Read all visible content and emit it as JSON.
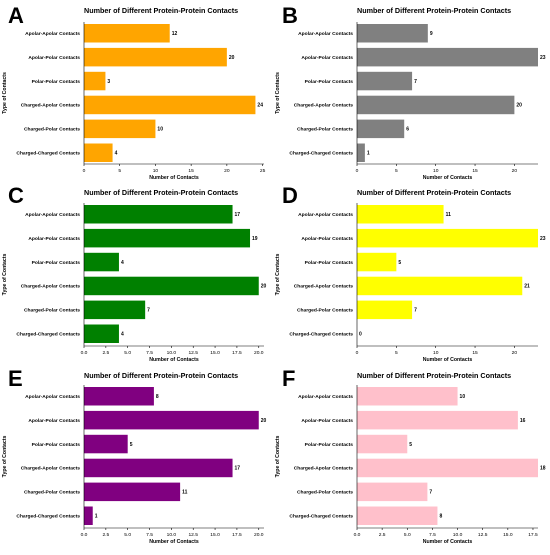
{
  "chart_data": [
    {
      "panel": "A",
      "type": "bar",
      "orientation": "horizontal",
      "title": "Number of Different Protein-Protein Contacts",
      "xlabel": "Number of Contacts",
      "ylabel": "Type of Contacts",
      "categories": [
        "Apolar-Apolar Contacts",
        "Apolar-Polar Contacts",
        "Polar-Polar Contacts",
        "Charged-Apolar Contacts",
        "Charged-Polar Contacts",
        "Charged-Charged Contacts"
      ],
      "values": [
        12,
        20,
        3,
        24,
        10,
        4
      ],
      "xlim": [
        0,
        25.2
      ],
      "xticks": [
        "0",
        "5",
        "10",
        "15",
        "20",
        "25"
      ],
      "color": "#FFA500",
      "grid": false
    },
    {
      "panel": "B",
      "type": "bar",
      "orientation": "horizontal",
      "title": "Number of Different Protein-Protein Contacts",
      "xlabel": "Number of Contacts",
      "ylabel": "Type of Contacts",
      "categories": [
        "Apolar-Apolar Contacts",
        "Apolar-Polar Contacts",
        "Polar-Polar Contacts",
        "Charged-Apolar Contacts",
        "Charged-Polar Contacts",
        "Charged-Charged Contacts"
      ],
      "values": [
        9,
        23,
        7,
        20,
        6,
        1
      ],
      "xlim": [
        0,
        23
      ],
      "xticks": [
        "0",
        "5",
        "10",
        "15",
        "20"
      ],
      "color": "#808080",
      "grid": false
    },
    {
      "panel": "C",
      "type": "bar",
      "orientation": "horizontal",
      "title": "Number of Different Protein-Protein Contacts",
      "xlabel": "Number of Contacts",
      "ylabel": "Type of Contacts",
      "categories": [
        "Apolar-Apolar Contacts",
        "Apolar-Polar Contacts",
        "Polar-Polar Contacts",
        "Charged-Apolar Contacts",
        "Charged-Polar Contacts",
        "Charged-Charged Contacts"
      ],
      "values": [
        17,
        19,
        4,
        20,
        7,
        4
      ],
      "xlim": [
        0,
        20.6
      ],
      "xticks": [
        "0.0",
        "2.5",
        "5.0",
        "7.5",
        "10.0",
        "12.5",
        "15.0",
        "17.5",
        "20.0"
      ],
      "color": "#008000",
      "grid": false
    },
    {
      "panel": "D",
      "type": "bar",
      "orientation": "horizontal",
      "title": "Number of Different Protein-Protein Contacts",
      "xlabel": "Number of Contacts",
      "ylabel": "Type of Contacts",
      "categories": [
        "Apolar-Apolar Contacts",
        "Apolar-Polar Contacts",
        "Polar-Polar Contacts",
        "Charged-Apolar Contacts",
        "Charged-Polar Contacts",
        "Charged-Charged Contacts"
      ],
      "values": [
        11,
        23,
        5,
        21,
        7,
        0
      ],
      "xlim": [
        0,
        23
      ],
      "xticks": [
        "0",
        "5",
        "10",
        "15",
        "20"
      ],
      "color": "#FFFF00",
      "grid": false
    },
    {
      "panel": "E",
      "type": "bar",
      "orientation": "horizontal",
      "title": "Number of Different Protein-Protein Contacts",
      "xlabel": "Number of Contacts",
      "ylabel": "Type of Contacts",
      "categories": [
        "Apolar-Apolar Contacts",
        "Apolar-Polar Contacts",
        "Polar-Polar Contacts",
        "Charged-Apolar Contacts",
        "Charged-Polar Contacts",
        "Charged-Charged Contacts"
      ],
      "values": [
        8,
        20,
        5,
        17,
        11,
        1
      ],
      "xlim": [
        0,
        20.6
      ],
      "xticks": [
        "0.0",
        "2.5",
        "5.0",
        "7.5",
        "10.0",
        "12.5",
        "15.0",
        "17.5",
        "20.0"
      ],
      "color": "#800080",
      "grid": false
    },
    {
      "panel": "F",
      "type": "bar",
      "orientation": "horizontal",
      "title": "Number of Different Protein-Protein Contacts",
      "xlabel": "Number of Contacts",
      "ylabel": "Type of Contacts",
      "categories": [
        "Apolar-Apolar Contacts",
        "Apolar-Polar Contacts",
        "Polar-Polar Contacts",
        "Charged-Apolar Contacts",
        "Charged-Polar Contacts",
        "Charged-Charged Contacts"
      ],
      "values": [
        10,
        16,
        5,
        18,
        7,
        8
      ],
      "xlim": [
        0,
        18
      ],
      "xticks": [
        "0.0",
        "2.5",
        "5.0",
        "7.5",
        "10.0",
        "12.5",
        "15.0",
        "17.5"
      ],
      "color": "#FFC0CB",
      "grid": false
    }
  ]
}
